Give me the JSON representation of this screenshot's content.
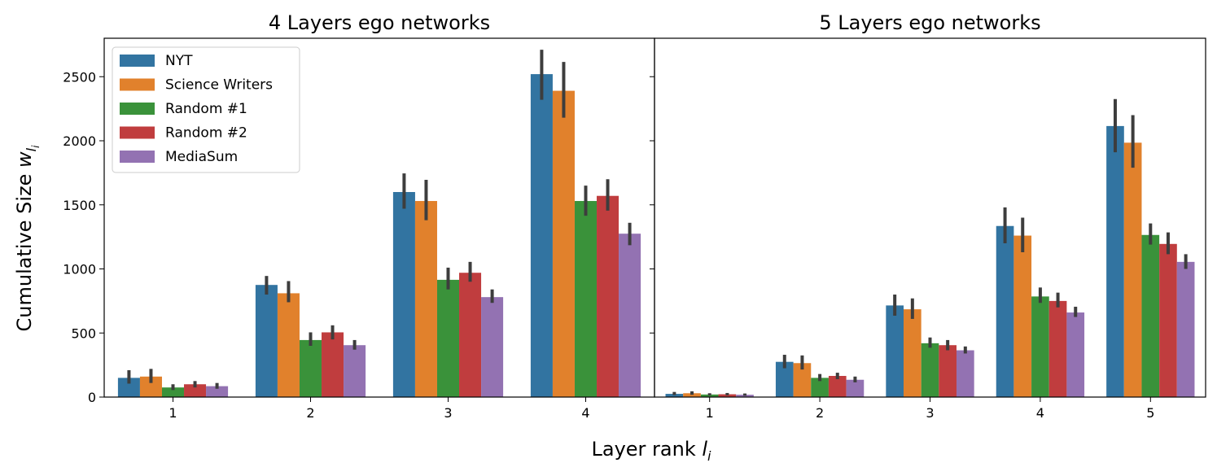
{
  "figure": {
    "xlabel_main": "Layer rank ",
    "xlabel_sub": "l",
    "xlabel_subscript": "i",
    "ylabel_main": "Cumulative Size ",
    "ylabel_sub": "w",
    "ylabel_subscript": "l",
    "ylabel_subsubscript": "i"
  },
  "colors": {
    "NYT": "#3274a1",
    "Science Writers": "#e1812c",
    "Random #1": "#3a923a",
    "Random #2": "#c03d3e",
    "MediaSum": "#9372b2",
    "errorbar": "#3d3d3d"
  },
  "legend": {
    "location": "upper left of left panel",
    "entries": [
      "NYT",
      "Science Writers",
      "Random #1",
      "Random #2",
      "MediaSum"
    ]
  },
  "chart_data": [
    {
      "type": "bar",
      "title": "4 Layers ego networks",
      "xlabel": "Layer rank l_i",
      "ylabel": "Cumulative Size w_l_i",
      "categories": [
        "1",
        "2",
        "3",
        "4"
      ],
      "ylim": [
        0,
        2800
      ],
      "yticks": [
        0,
        500,
        1000,
        1500,
        2000,
        2500
      ],
      "grid": false,
      "series": [
        {
          "name": "NYT",
          "values": [
            150,
            875,
            1600,
            2520
          ],
          "err_low": [
            105,
            800,
            1470,
            2320
          ],
          "err_high": [
            210,
            945,
            1745,
            2710
          ]
        },
        {
          "name": "Science Writers",
          "values": [
            160,
            810,
            1530,
            2390
          ],
          "err_low": [
            110,
            740,
            1380,
            2180
          ],
          "err_high": [
            220,
            905,
            1695,
            2615
          ]
        },
        {
          "name": "Random #1",
          "values": [
            75,
            445,
            915,
            1530
          ],
          "err_low": [
            55,
            400,
            840,
            1415
          ],
          "err_high": [
            100,
            505,
            1010,
            1650
          ]
        },
        {
          "name": "Random #2",
          "values": [
            100,
            505,
            970,
            1570
          ],
          "err_low": [
            75,
            450,
            900,
            1455
          ],
          "err_high": [
            125,
            560,
            1055,
            1700
          ]
        },
        {
          "name": "MediaSum",
          "values": [
            85,
            405,
            780,
            1275
          ],
          "err_low": [
            65,
            370,
            735,
            1185
          ],
          "err_high": [
            110,
            445,
            840,
            1360
          ]
        }
      ]
    },
    {
      "type": "bar",
      "title": "5 Layers ego networks",
      "xlabel": "Layer rank l_i",
      "ylabel": "Cumulative Size w_l_i",
      "categories": [
        "1",
        "2",
        "3",
        "4",
        "5"
      ],
      "ylim": [
        0,
        2800
      ],
      "yticks": [
        0,
        500,
        1000,
        1500,
        2000,
        2500
      ],
      "grid": false,
      "series": [
        {
          "name": "NYT",
          "values": [
            25,
            275,
            715,
            1335,
            2115
          ],
          "err_low": [
            15,
            225,
            635,
            1200,
            1910
          ],
          "err_high": [
            40,
            330,
            800,
            1480,
            2325
          ]
        },
        {
          "name": "Science Writers",
          "values": [
            30,
            265,
            685,
            1260,
            1985
          ],
          "err_low": [
            18,
            215,
            610,
            1130,
            1790
          ],
          "err_high": [
            45,
            325,
            770,
            1400,
            2200
          ]
        },
        {
          "name": "Random #1",
          "values": [
            20,
            150,
            420,
            785,
            1265
          ],
          "err_low": [
            12,
            125,
            385,
            735,
            1190
          ],
          "err_high": [
            30,
            180,
            465,
            855,
            1355
          ]
        },
        {
          "name": "Random #2",
          "values": [
            22,
            165,
            405,
            750,
            1195
          ],
          "err_low": [
            13,
            140,
            365,
            700,
            1115
          ],
          "err_high": [
            32,
            190,
            445,
            815,
            1285
          ]
        },
        {
          "name": "MediaSum",
          "values": [
            18,
            135,
            365,
            660,
            1055
          ],
          "err_low": [
            10,
            115,
            340,
            625,
            1000
          ],
          "err_high": [
            28,
            160,
            395,
            705,
            1115
          ]
        }
      ]
    }
  ]
}
